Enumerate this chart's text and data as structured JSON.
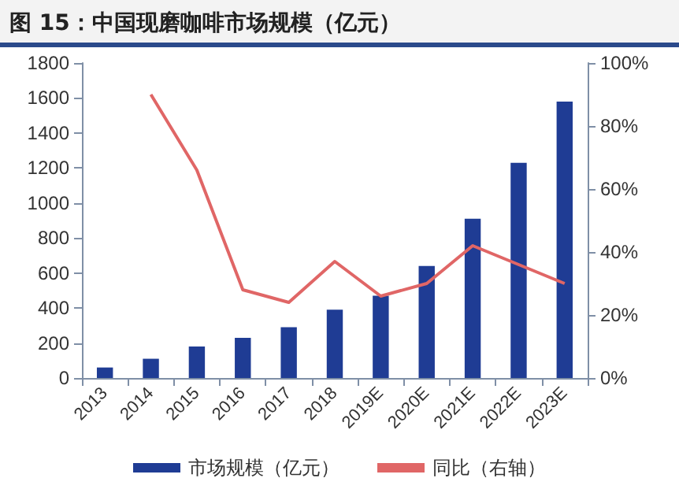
{
  "chart_data": {
    "type": "bar",
    "title": "图 15：中国现磨咖啡市场规模（亿元）",
    "categories": [
      "2013",
      "2014",
      "2015",
      "2016",
      "2017",
      "2018",
      "2019E",
      "2020E",
      "2021E",
      "2022E",
      "2023E"
    ],
    "series": [
      {
        "name": "市场规模（亿元）",
        "color": "#1f3c94",
        "values": [
          60,
          110,
          180,
          230,
          290,
          390,
          470,
          640,
          910,
          1230,
          1580
        ]
      },
      {
        "name": "同比（右轴）",
        "type": "line",
        "axis": "y2",
        "color": "#e06666",
        "values": [
          null,
          90,
          66,
          28,
          24,
          37,
          26,
          30,
          42,
          36,
          30
        ]
      }
    ],
    "ylim": [
      0,
      1800
    ],
    "yticks": [
      0,
      200,
      400,
      600,
      800,
      1000,
      1200,
      1400,
      1600,
      1800
    ],
    "y2lim": [
      0,
      100
    ],
    "y2ticks": [
      {
        "value": 0,
        "label": "0%"
      },
      {
        "value": 20,
        "label": "20%"
      },
      {
        "value": 40,
        "label": "40%"
      },
      {
        "value": 60,
        "label": "60%"
      },
      {
        "value": 80,
        "label": "80%"
      },
      {
        "value": 100,
        "label": "100%"
      }
    ],
    "grid": false,
    "legend": "bottom",
    "marker": "none"
  }
}
